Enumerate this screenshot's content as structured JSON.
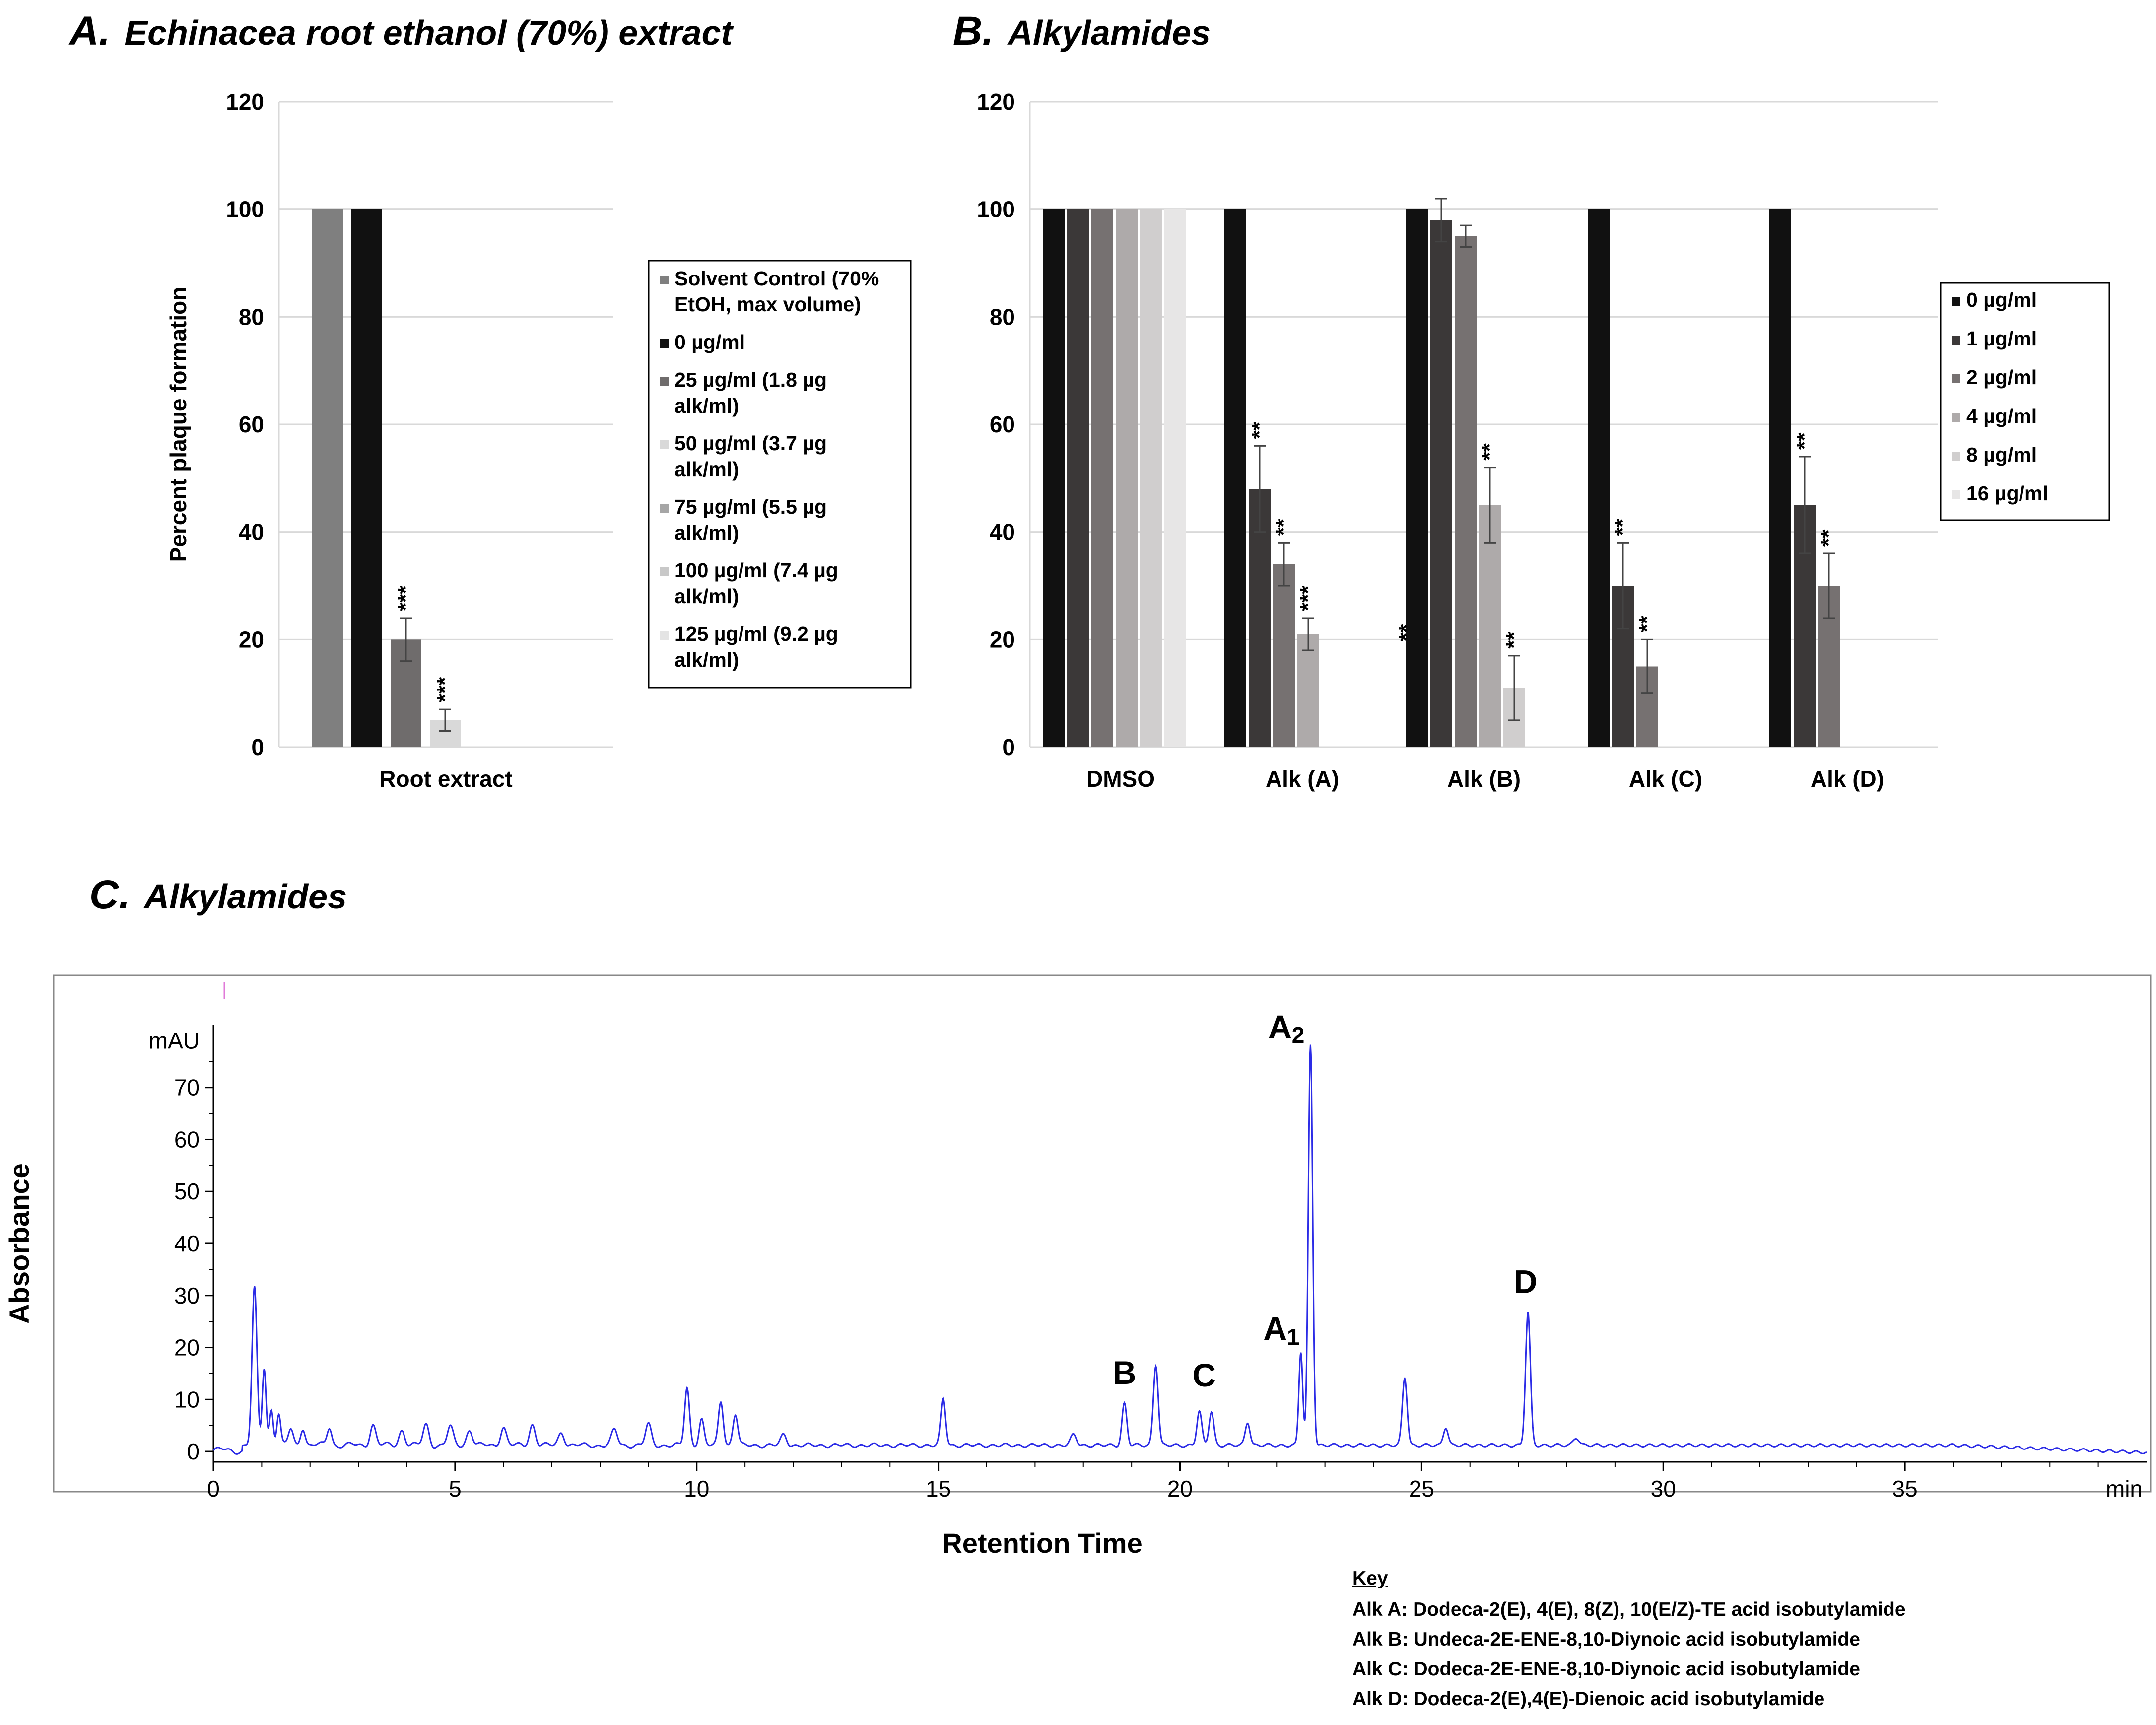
{
  "chart_data": [
    {
      "panel_letter": "A.",
      "title": "Echinacea root ethanol (70%) extract",
      "type": "bar",
      "ylabel": "Percent plaque formation",
      "xlabel": "",
      "ylim": [
        0,
        120
      ],
      "yticks": [
        0,
        20,
        40,
        60,
        80,
        100,
        120
      ],
      "categories": [
        "Root extract"
      ],
      "legend_position": "right",
      "legend": [
        {
          "label_lines": [
            "Solvent Control (70%",
            "EtOH, max volume)"
          ],
          "color": "#7f7f7f"
        },
        {
          "label_lines": [
            "0 µg/ml"
          ],
          "color": "#111111"
        },
        {
          "label_lines": [
            "25 µg/ml (1.8 µg",
            "alk/ml)"
          ],
          "color": "#6f6c6c"
        },
        {
          "label_lines": [
            "50 µg/ml (3.7 µg",
            "alk/ml)"
          ],
          "color": "#d9d9d9"
        },
        {
          "label_lines": [
            "75 µg/ml (5.5 µg",
            "alk/ml)"
          ],
          "color": "#a6a6a6"
        },
        {
          "label_lines": [
            "100 µg/ml (7.4 µg",
            "alk/ml)"
          ],
          "color": "#c8c8c8"
        },
        {
          "label_lines": [
            "125 µg/ml (9.2 µg",
            "alk/ml)"
          ],
          "color": "#e4e4e4"
        }
      ],
      "series": [
        {
          "name": "Solvent Control (70% EtOH, max volume)",
          "color": "#7f7f7f",
          "values": [
            100
          ],
          "errors": [
            0
          ],
          "sig": [
            ""
          ]
        },
        {
          "name": "0 µg/ml",
          "color": "#111111",
          "values": [
            100
          ],
          "errors": [
            0
          ],
          "sig": [
            ""
          ]
        },
        {
          "name": "25 µg/ml (1.8 µg alk/ml)",
          "color": "#6f6c6c",
          "values": [
            20
          ],
          "errors": [
            4
          ],
          "sig": [
            "***"
          ]
        },
        {
          "name": "50 µg/ml (3.7 µg alk/ml)",
          "color": "#d9d9d9",
          "values": [
            5
          ],
          "errors": [
            2
          ],
          "sig": [
            "***"
          ]
        },
        {
          "name": "75 µg/ml (5.5 µg alk/ml)",
          "color": "#a6a6a6",
          "values": [
            null
          ],
          "errors": [
            null
          ],
          "sig": [
            ""
          ]
        },
        {
          "name": "100 µg/ml (7.4 µg alk/ml)",
          "color": "#c8c8c8",
          "values": [
            null
          ],
          "errors": [
            null
          ],
          "sig": [
            ""
          ]
        },
        {
          "name": "125 µg/ml (9.2 µg alk/ml)",
          "color": "#e4e4e4",
          "values": [
            null
          ],
          "errors": [
            null
          ],
          "sig": [
            ""
          ]
        }
      ]
    },
    {
      "panel_letter": "B.",
      "title": "Alkylamides",
      "type": "bar",
      "ylabel": "",
      "xlabel": "",
      "ylim": [
        0,
        120
      ],
      "yticks": [
        0,
        20,
        40,
        60,
        80,
        100,
        120
      ],
      "categories": [
        "DMSO",
        "Alk (A)",
        "Alk (B)",
        "Alk (C)",
        "Alk (D)"
      ],
      "legend_position": "right",
      "legend": [
        {
          "label_lines": [
            "0 µg/ml"
          ],
          "color": "#111111"
        },
        {
          "label_lines": [
            "1 µg/ml"
          ],
          "color": "#3b3838"
        },
        {
          "label_lines": [
            "2 µg/ml"
          ],
          "color": "#767171"
        },
        {
          "label_lines": [
            "4 µg/ml"
          ],
          "color": "#aeaaaa"
        },
        {
          "label_lines": [
            "8 µg/ml"
          ],
          "color": "#d0cece"
        },
        {
          "label_lines": [
            "16 µg/ml"
          ],
          "color": "#e7e6e6"
        }
      ],
      "series": [
        {
          "name": "0 µg/ml",
          "color": "#111111",
          "values": [
            100,
            100,
            100,
            100,
            100
          ],
          "errors": [
            0,
            0,
            0,
            0,
            0
          ],
          "sig": [
            "",
            "",
            "",
            "",
            ""
          ]
        },
        {
          "name": "1 µg/ml",
          "color": "#3b3838",
          "values": [
            100,
            48,
            98,
            30,
            45
          ],
          "errors": [
            0,
            8,
            4,
            8,
            9
          ],
          "sig": [
            "",
            "**",
            "",
            "**",
            "**"
          ]
        },
        {
          "name": "2 µg/ml",
          "color": "#767171",
          "values": [
            100,
            34,
            95,
            15,
            30
          ],
          "errors": [
            0,
            4,
            2,
            5,
            6
          ],
          "sig": [
            "",
            "**",
            "",
            "**",
            "**"
          ]
        },
        {
          "name": "4 µg/ml",
          "color": "#aeaaaa",
          "values": [
            100,
            21,
            45,
            null,
            null
          ],
          "errors": [
            0,
            3,
            7,
            null,
            null
          ],
          "sig": [
            "",
            "***",
            "**",
            "",
            ""
          ]
        },
        {
          "name": "8 µg/ml",
          "color": "#d0cece",
          "values": [
            100,
            null,
            11,
            null,
            null
          ],
          "errors": [
            0,
            null,
            6,
            null,
            null
          ],
          "sig": [
            "",
            "",
            "**",
            "",
            ""
          ]
        },
        {
          "name": "16 µg/ml",
          "color": "#e7e6e6",
          "values": [
            100,
            null,
            null,
            null,
            null
          ],
          "errors": [
            0,
            null,
            null,
            null,
            null
          ],
          "sig": [
            "",
            "",
            "",
            "",
            ""
          ]
        }
      ],
      "stray_mark": "**"
    },
    {
      "panel_letter": "C.",
      "title": "Alkylamides",
      "type": "line",
      "xlabel": "Retention Time",
      "ylabel": "Absorbance",
      "unit_label": "mAU",
      "x_unit_label": "min",
      "xlim": [
        0,
        40
      ],
      "ylim": [
        -2,
        82
      ],
      "xticks": [
        0,
        5,
        10,
        15,
        20,
        25,
        30,
        35
      ],
      "yticks": [
        0,
        10,
        20,
        30,
        40,
        50,
        60,
        70
      ],
      "line_color": "#2b2be6",
      "peaks": [
        {
          "x": 0.85,
          "y": 30,
          "w": 0.05
        },
        {
          "x": 1.05,
          "y": 15,
          "w": 0.04
        },
        {
          "x": 1.2,
          "y": 7,
          "w": 0.04
        },
        {
          "x": 1.35,
          "y": 6,
          "w": 0.04
        },
        {
          "x": 1.6,
          "y": 3,
          "w": 0.05
        },
        {
          "x": 1.85,
          "y": 3.5,
          "w": 0.05
        },
        {
          "x": 2.4,
          "y": 3.5,
          "w": 0.05
        },
        {
          "x": 3.3,
          "y": 4,
          "w": 0.06
        },
        {
          "x": 3.9,
          "y": 3,
          "w": 0.06
        },
        {
          "x": 4.4,
          "y": 4,
          "w": 0.06
        },
        {
          "x": 4.9,
          "y": 3.5,
          "w": 0.06
        },
        {
          "x": 5.3,
          "y": 3,
          "w": 0.06
        },
        {
          "x": 6.0,
          "y": 3.5,
          "w": 0.06
        },
        {
          "x": 6.6,
          "y": 4,
          "w": 0.06
        },
        {
          "x": 7.2,
          "y": 2.5,
          "w": 0.06
        },
        {
          "x": 8.3,
          "y": 3,
          "w": 0.06
        },
        {
          "x": 9.0,
          "y": 4,
          "w": 0.06
        },
        {
          "x": 9.8,
          "y": 11,
          "w": 0.05
        },
        {
          "x": 10.1,
          "y": 5,
          "w": 0.05
        },
        {
          "x": 10.5,
          "y": 8.5,
          "w": 0.05
        },
        {
          "x": 10.8,
          "y": 6,
          "w": 0.05
        },
        {
          "x": 11.8,
          "y": 2,
          "w": 0.06
        },
        {
          "x": 15.1,
          "y": 9,
          "w": 0.05
        },
        {
          "x": 17.8,
          "y": 2,
          "w": 0.06
        },
        {
          "x": 18.85,
          "y": 8,
          "w": 0.05
        },
        {
          "x": 19.5,
          "y": 15.5,
          "w": 0.05
        },
        {
          "x": 20.4,
          "y": 6.5,
          "w": 0.05
        },
        {
          "x": 20.65,
          "y": 6.5,
          "w": 0.05
        },
        {
          "x": 21.4,
          "y": 4.5,
          "w": 0.05
        },
        {
          "x": 22.5,
          "y": 18,
          "w": 0.04
        },
        {
          "x": 22.7,
          "y": 77,
          "w": 0.045
        },
        {
          "x": 24.65,
          "y": 13,
          "w": 0.05
        },
        {
          "x": 25.5,
          "y": 3.5,
          "w": 0.05
        },
        {
          "x": 27.2,
          "y": 25.5,
          "w": 0.05
        },
        {
          "x": 28.2,
          "y": 1.5,
          "w": 0.06
        }
      ],
      "peak_labels": [
        {
          "main": "B",
          "sub": "",
          "x": 18.85,
          "y": 13
        },
        {
          "main": "C",
          "sub": "",
          "x": 20.5,
          "y": 12.5
        },
        {
          "main": "A",
          "sub": "1",
          "x": 22.1,
          "y": 21.5
        },
        {
          "main": "A",
          "sub": "2",
          "x": 22.2,
          "y": 79.5
        },
        {
          "main": "D",
          "sub": "",
          "x": 27.15,
          "y": 30.5
        }
      ]
    }
  ],
  "key": {
    "heading": "Key",
    "lines": [
      "Alk A: Dodeca-2(E), 4(E), 8(Z), 10(E/Z)-TE acid isobutylamide",
      "Alk B: Undeca-2E-ENE-8,10-Diynoic acid isobutylamide",
      "Alk C: Dodeca-2E-ENE-8,10-Diynoic acid isobutylamide",
      "Alk D: Dodeca-2(E),4(E)-Dienoic acid isobutylamide"
    ]
  }
}
